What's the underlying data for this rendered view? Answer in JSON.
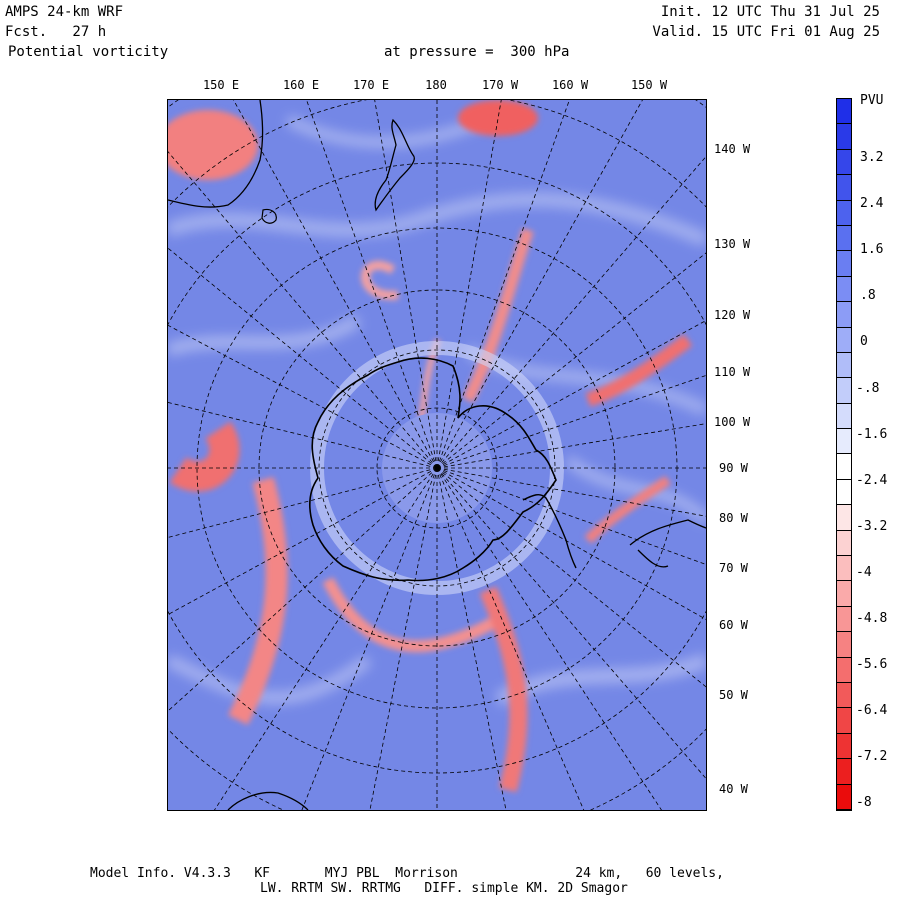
{
  "header": {
    "model": "AMPS 24-km WRF",
    "fcst": "Fcst.   27 h",
    "field": "Potential vorticity",
    "level": "at pressure =  300 hPa",
    "init": "Init. 12 UTC Thu 31 Jul 25",
    "valid": "Valid. 15 UTC Fri 01 Aug 25"
  },
  "map": {
    "lon_labels_top": [
      "150 E",
      "160 E",
      "170 E",
      "180",
      "170 W",
      "160 W",
      "150 W"
    ],
    "lon_labels_right": [
      "140 W",
      "130 W",
      "120 W",
      "110 W",
      "100 W",
      "90 W",
      "80 W",
      "70 W",
      "60 W",
      "50 W",
      "40 W"
    ],
    "colors": {
      "positive": "#4d63e0",
      "negative": "#f26060",
      "coast": "#000000"
    }
  },
  "colorbar": {
    "unit": "PVU",
    "labels": [
      "3.2",
      "2.4",
      "1.6",
      ".8",
      "0",
      "-.8",
      "-1.6",
      "-2.4",
      "-3.2",
      "-4",
      "-4.8",
      "-5.6",
      "-6.4",
      "-7.2",
      "-8"
    ],
    "colors": [
      "#1f2fe8",
      "#2a3ae8",
      "#3546ea",
      "#4154ec",
      "#4d62ee",
      "#5a70f0",
      "#6a7ef2",
      "#7b8df4",
      "#8c9cf6",
      "#9eadf8",
      "#b0bdf9",
      "#c2cdfa",
      "#d4dcfc",
      "#e6ebfd",
      "#ffffff",
      "#ffffff",
      "#fde6e6",
      "#fcd2d2",
      "#fbbebe",
      "#faaaaa",
      "#f89696",
      "#f68282",
      "#f46e6e",
      "#f25a5a",
      "#f04646",
      "#ee3333",
      "#ec1f1f",
      "#ea0c0c"
    ]
  },
  "footer": {
    "line1": "Model Info. V4.3.3   KF       MYJ PBL  Morrison               24 km,   60 levels,",
    "line2": "LW. RRTM SW. RRTMG   DIFF. simple KM. 2D Smagor"
  }
}
